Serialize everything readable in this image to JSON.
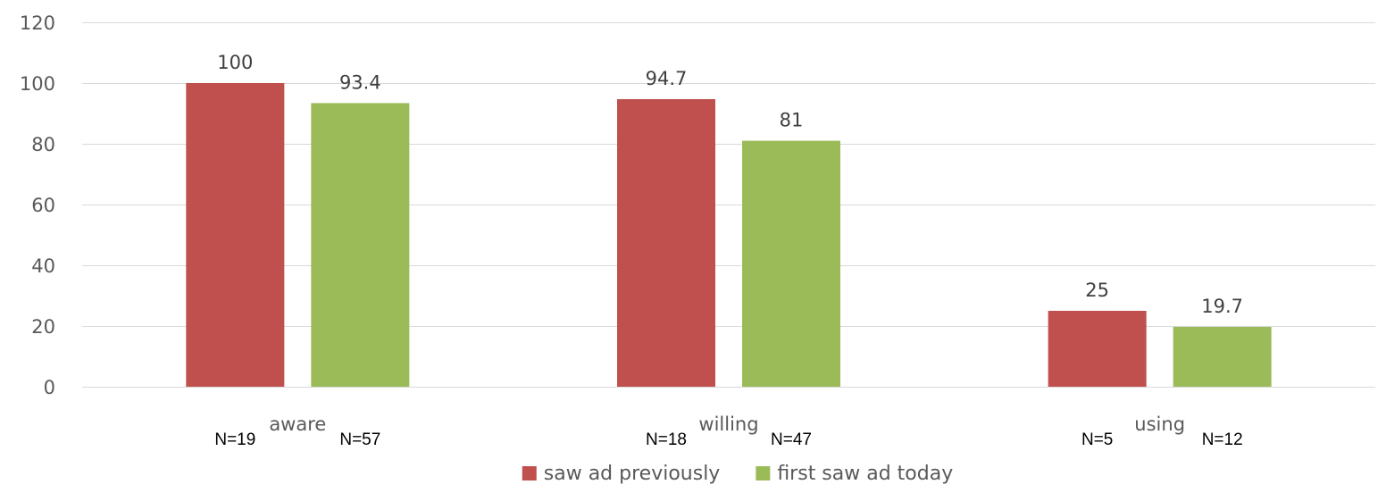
{
  "chart_data": {
    "type": "bar",
    "categories": [
      "aware",
      "willing",
      "using"
    ],
    "series": [
      {
        "name": "saw ad previously",
        "values": [
          100,
          94.7,
          25
        ],
        "sample_sizes": [
          "N=19",
          "N=18",
          "N=5"
        ],
        "color": "#C0504D"
      },
      {
        "name": "first saw ad today",
        "values": [
          93.4,
          81,
          19.7
        ],
        "sample_sizes": [
          "N=57",
          "N=47",
          "N=12"
        ],
        "color": "#9BBB59"
      }
    ],
    "ylim": [
      0,
      120
    ],
    "yticks": [
      0,
      20,
      40,
      60,
      80,
      100,
      120
    ],
    "data_labels": [
      [
        "100",
        "93.4"
      ],
      [
        "94.7",
        "81"
      ],
      [
        "25",
        "19.7"
      ]
    ],
    "grid": true,
    "legend": "bottom-center",
    "title": "",
    "xlabel": "",
    "ylabel": ""
  }
}
